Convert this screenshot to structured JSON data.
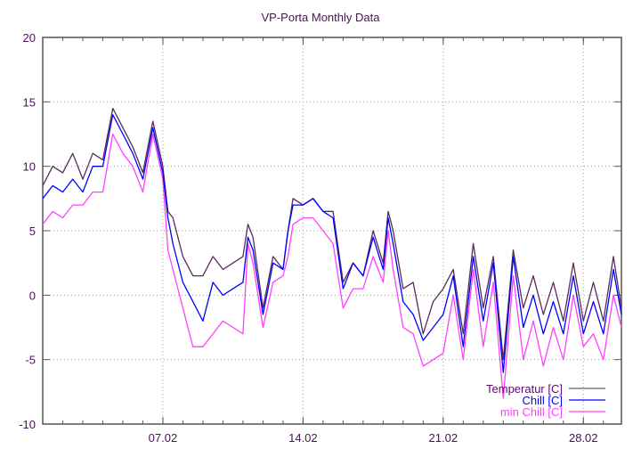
{
  "chart_data": {
    "type": "line",
    "title": "VP-Porta Monthly Data",
    "xlabel": "",
    "ylabel": "",
    "xlim": [
      1,
      29.9
    ],
    "ylim": [
      -10,
      20
    ],
    "grid": true,
    "legend_position": "bottom-right",
    "x_ticks": [
      {
        "value": 7,
        "label": "07.02"
      },
      {
        "value": 14,
        "label": "14.02"
      },
      {
        "value": 21,
        "label": "21.02"
      },
      {
        "value": 28,
        "label": "28.02"
      }
    ],
    "y_ticks": [
      -10,
      -5,
      0,
      5,
      10,
      15,
      20
    ],
    "x": [
      1,
      1.5,
      2,
      2.5,
      3,
      3.5,
      4,
      4.5,
      5,
      5.5,
      6,
      6.5,
      7,
      7.25,
      7.5,
      8,
      8.5,
      9,
      9.5,
      10,
      10.5,
      11,
      11.25,
      11.5,
      12,
      12.5,
      13,
      13.25,
      13.5,
      14,
      14.5,
      15,
      15.5,
      16,
      16.5,
      17,
      17.5,
      18,
      18.25,
      18.5,
      19,
      19.5,
      20,
      20.5,
      21,
      21.5,
      22,
      22.5,
      23,
      23.5,
      24,
      24.5,
      25,
      25.5,
      26,
      26.5,
      27,
      27.5,
      28,
      28.5,
      29,
      29.5,
      29.9
    ],
    "series": [
      {
        "name": "Temperatur [C]",
        "color": "#5a2a5a",
        "values": [
          8.5,
          10,
          9.5,
          11,
          9,
          11,
          10.5,
          14.5,
          13,
          11.5,
          9.5,
          13.5,
          10,
          6.5,
          6,
          3,
          1.5,
          1.5,
          3,
          2,
          2.5,
          3,
          5.5,
          4.5,
          -1,
          3,
          2,
          5,
          7.5,
          7,
          7.5,
          6.5,
          6.5,
          1,
          2.5,
          1.5,
          5,
          2.5,
          6.5,
          5,
          0.5,
          1,
          -3,
          -0.5,
          0.5,
          2,
          -3,
          4,
          -1,
          3,
          -5,
          3.5,
          -1,
          1.5,
          -1.5,
          1,
          -2,
          2.5,
          -2,
          1,
          -2,
          3,
          -1
        ]
      },
      {
        "name": "Chill [C]",
        "color": "#0000ff",
        "values": [
          7.5,
          8.5,
          8,
          9,
          8,
          10,
          10,
          14,
          12.5,
          11,
          9,
          13,
          9.5,
          6,
          4,
          1,
          -0.5,
          -2,
          1,
          0,
          0.5,
          1,
          4.5,
          3.5,
          -1.5,
          2.5,
          2,
          5,
          7,
          7,
          7.5,
          6.5,
          6,
          0.5,
          2.5,
          1.5,
          4.5,
          2,
          6,
          4,
          -0.5,
          -1.5,
          -3.5,
          -2.5,
          -1.5,
          1.5,
          -4,
          3,
          -2,
          2.5,
          -6,
          3,
          -2.5,
          0,
          -3,
          -0.5,
          -3,
          1.5,
          -3,
          -0.5,
          -3,
          2,
          -1.5
        ]
      },
      {
        "name": "min Chill [C]",
        "color": "#ff40ff",
        "values": [
          5.5,
          6.5,
          6,
          7,
          7,
          8,
          8,
          12.5,
          11,
          10,
          8,
          12.5,
          9,
          3.5,
          2,
          -1,
          -4,
          -4,
          -3,
          -2,
          -2.5,
          -3,
          4,
          2.5,
          -2.5,
          1,
          1.5,
          3,
          5.5,
          6,
          6,
          5,
          4,
          -1,
          0.5,
          0.5,
          3,
          1,
          5,
          2,
          -2.5,
          -3,
          -5.5,
          -5,
          -4.5,
          0,
          -5,
          2,
          -4,
          1,
          -8,
          1.5,
          -5,
          -2,
          -5.5,
          -2.5,
          -5,
          0,
          -4,
          -3,
          -5,
          0,
          -2.5
        ]
      }
    ]
  }
}
